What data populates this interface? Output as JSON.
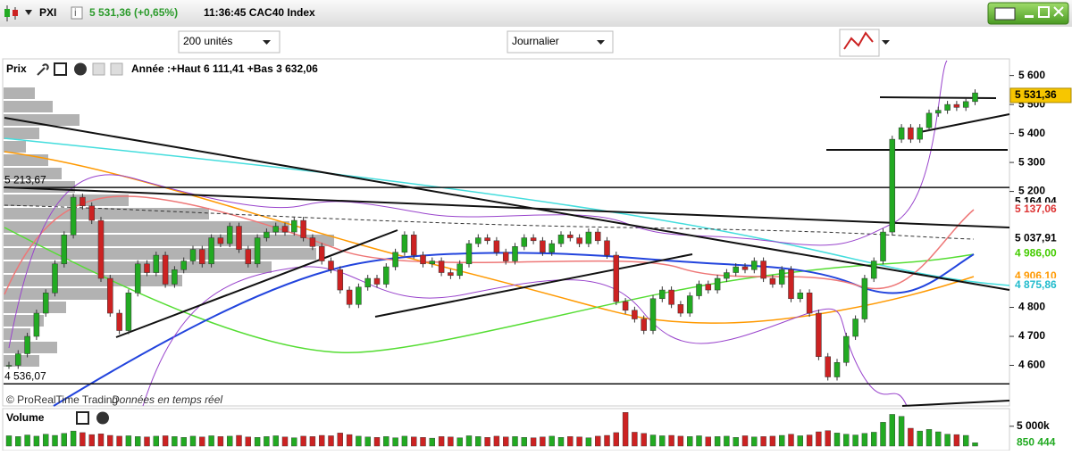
{
  "header": {
    "symbol": "PXI",
    "quote": "5 531,36 (+0,65%)",
    "time": "11:36:45 CAC40 Index"
  },
  "toolbar": {
    "units": "200 unités",
    "period": "Journalier"
  },
  "chart_data": [
    {
      "type": "candlestick",
      "title": "Prix",
      "subtitle": "Année :+Haut 6 111,41 +Bas 3 632,06",
      "annotations": [
        "© ProRealTime Trading",
        "Données en temps réel"
      ],
      "values": [
        4600,
        4640,
        4700,
        4780,
        4850,
        4950,
        5050,
        5180,
        5150,
        5100,
        4900,
        4780,
        4720,
        4850,
        4950,
        4920,
        4980,
        4880,
        4930,
        4960,
        5000,
        4950,
        5040,
        5020,
        5080,
        5000,
        4950,
        5040,
        5060,
        5080,
        5060,
        5100,
        5040,
        5010,
        4960,
        4930,
        4860,
        4810,
        4870,
        4900,
        4880,
        4940,
        4990,
        5050,
        4980,
        4950,
        4960,
        4920,
        4910,
        4950,
        5020,
        5040,
        5030,
        4990,
        4960,
        5010,
        5040,
        5030,
        4990,
        5020,
        5050,
        5040,
        5020,
        5060,
        5030,
        4980,
        4820,
        4790,
        4760,
        4720,
        4830,
        4860,
        4810,
        4780,
        4840,
        4880,
        4860,
        4900,
        4920,
        4940,
        4930,
        4960,
        4900,
        4880,
        4930,
        4830,
        4850,
        4780,
        4630,
        4560,
        4610,
        4700,
        4760,
        4900,
        4960,
        5060,
        5380,
        5420,
        5380,
        5420,
        5470,
        5480,
        5500,
        5490,
        5510,
        5540
      ],
      "up_color": "#22aa22",
      "down_color": "#cc2222",
      "ylim": [
        4460,
        5645
      ],
      "yticks": [
        {
          "value": 5600,
          "label": "5 600"
        },
        {
          "value": 5500,
          "label": "5 500"
        },
        {
          "value": 5400,
          "label": "5 400"
        },
        {
          "value": 5300,
          "label": "5 300"
        },
        {
          "value": 5200,
          "label": "5 200"
        },
        {
          "value": 4800,
          "label": "4 800"
        },
        {
          "value": 4700,
          "label": "4 700"
        },
        {
          "value": 4600,
          "label": "4 600"
        }
      ],
      "markers": [
        {
          "value": 5531.36,
          "label": "5 531,36",
          "color": "#000000",
          "background": "#f7c600"
        },
        {
          "value": 5164.04,
          "label": "5 164,04",
          "color": "#000000"
        },
        {
          "value": 5137.06,
          "label": "5 137,06",
          "color": "#dd3333"
        },
        {
          "value": 5037.91,
          "label": "5 037,91",
          "color": "#000000"
        },
        {
          "value": 4986.0,
          "label": "4 986,00",
          "color": "#44cc00"
        },
        {
          "value": 4906.1,
          "label": "4 906,10",
          "color": "#ff9900"
        },
        {
          "value": 4875.86,
          "label": "4 875,86",
          "color": "#22bbcc"
        }
      ],
      "levels": [
        {
          "value": 5213.67,
          "label": "5 213,67"
        },
        {
          "value": 4536.07,
          "label": "4 536,07"
        }
      ]
    },
    {
      "type": "bar",
      "title": "Volume",
      "values": [
        2600000,
        2400000,
        2800000,
        2500000,
        3000000,
        2700000,
        3200000,
        3800000,
        3400000,
        2900000,
        3100000,
        2700000,
        2500000,
        2600000,
        2400000,
        2300000,
        2500000,
        2600000,
        2400000,
        2200000,
        2500000,
        2300000,
        2600000,
        2400000,
        2500000,
        2700000,
        2300000,
        2200000,
        2400000,
        2600000,
        2300000,
        2100000,
        2500000,
        2400000,
        2700000,
        2600000,
        3300000,
        2900000,
        2500000,
        2300000,
        2200000,
        2400000,
        2100000,
        2500000,
        2300000,
        2200000,
        2000000,
        2400000,
        2300000,
        2100000,
        2600000,
        2400000,
        2200000,
        2500000,
        2300000,
        2400000,
        2200000,
        2100000,
        2300000,
        2500000,
        2200000,
        2400000,
        2300000,
        2100000,
        2500000,
        2700000,
        3400000,
        8500000,
        3500000,
        3200000,
        2800000,
        2600000,
        2700000,
        2500000,
        2400000,
        2600000,
        2300000,
        2400000,
        2500000,
        2200000,
        2600000,
        2300000,
        2400000,
        2500000,
        2700000,
        3000000,
        2600000,
        2800000,
        3600000,
        3900000,
        3300000,
        3000000,
        2800000,
        3200000,
        3500000,
        6000000,
        8000000,
        7500000,
        4500000,
        3800000,
        4200000,
        3600000,
        3000000,
        2900000,
        2700000,
        850444
      ],
      "ylim": [
        0,
        9000000
      ],
      "yticks": [
        {
          "value": 5000000,
          "label": "5 000k"
        }
      ],
      "last": {
        "value": 850444,
        "label": "850 444",
        "color": "#22aa22"
      }
    }
  ]
}
